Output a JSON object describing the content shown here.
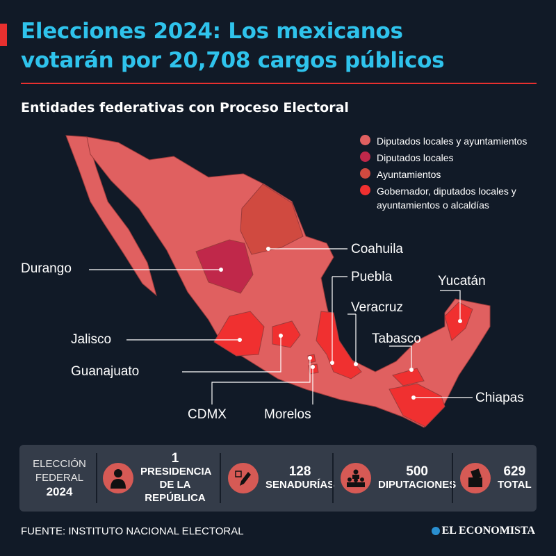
{
  "header": {
    "title_line1": "Elecciones 2024: Los mexicanos",
    "title_line2": "votarán por 20,708 cargos públicos",
    "subtitle": "Entidades federativas con Proceso Electoral"
  },
  "colors": {
    "background": "#111a27",
    "title": "#2fc3ec",
    "accent": "#e8302f",
    "base_state": "#e06060",
    "diputados_locales": "#c0284a",
    "ayuntamientos": "#d04a40",
    "gobernador": "#f03030"
  },
  "legend": [
    {
      "label": "Diputados locales y ayuntamientos",
      "color": "#e06060"
    },
    {
      "label": "Diputados locales",
      "color": "#c0284a"
    },
    {
      "label": "Ayuntamientos",
      "color": "#d04a40"
    },
    {
      "label": "Gobernador, diputados locales y ayuntamientos o alcaldías",
      "color": "#f03030"
    }
  ],
  "map_labels": {
    "durango": "Durango",
    "coahuila": "Coahuila",
    "puebla": "Puebla",
    "veracruz": "Veracruz",
    "yucatan": "Yucatán",
    "tabasco": "Tabasco",
    "jalisco": "Jalisco",
    "guanajuato": "Guanajuato",
    "cdmx": "CDMX",
    "morelos": "Morelos",
    "chiapas": "Chiapas"
  },
  "summary": {
    "label_line1": "ELECCIÓN",
    "label_line2": "FEDERAL",
    "label_year": "2024",
    "items": [
      {
        "icon": "person-icon",
        "number": "1",
        "label": "PRESIDENCIA DE LA REPÚBLICA"
      },
      {
        "icon": "pencil-check-icon",
        "number": "128",
        "label": "SENADURÍAS"
      },
      {
        "icon": "assembly-icon",
        "number": "500",
        "label": "DIPUTACIONES"
      },
      {
        "icon": "ballot-box-icon",
        "number": "629",
        "label": "TOTAL"
      }
    ]
  },
  "footer": {
    "source": "FUENTE: INSTITUTO NACIONAL ELECTORAL",
    "logo": "EL ECONOMISTA"
  }
}
